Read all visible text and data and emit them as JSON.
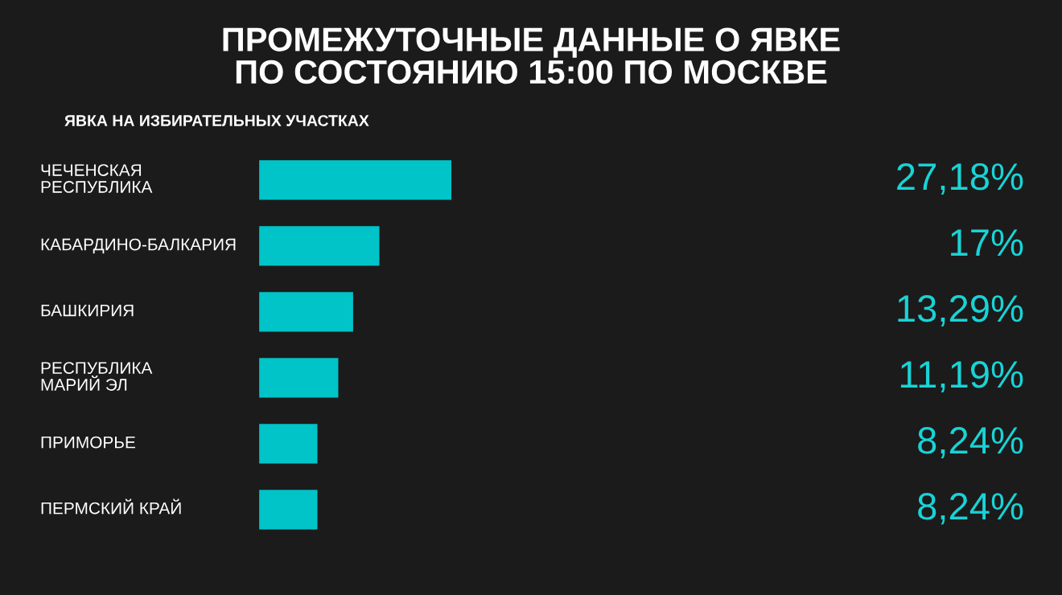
{
  "chart_data": {
    "type": "bar",
    "orientation": "horizontal",
    "title": "ПРОМЕЖУТОЧНЫЕ ДАННЫЕ О ЯВКЕ\nПО СОСТОЯНИЮ 15:00 ПО МОСКВЕ",
    "subtitle": "ЯВКА НА ИЗБИРАТЕЛЬНЫХ УЧАСТКАХ",
    "categories": [
      "ЧЕЧЕНСКАЯ\nРЕСПУБЛИКА",
      "КАБАРДИНО-БАЛКАРИЯ",
      "БАШКИРИЯ",
      "РЕСПУБЛИКА\nМАРИЙ ЭЛ",
      "ПРИМОРЬЕ",
      "ПЕРМСКИЙ КРАЙ"
    ],
    "values": [
      27.18,
      17,
      13.29,
      11.19,
      8.24,
      8.24
    ],
    "value_labels": [
      "27,18%",
      "17%",
      "13,29%",
      "11,19%",
      "8,24%",
      "8,24%"
    ],
    "color": "#00c4c8",
    "tick_labels": false,
    "grid": false,
    "legend": false
  }
}
